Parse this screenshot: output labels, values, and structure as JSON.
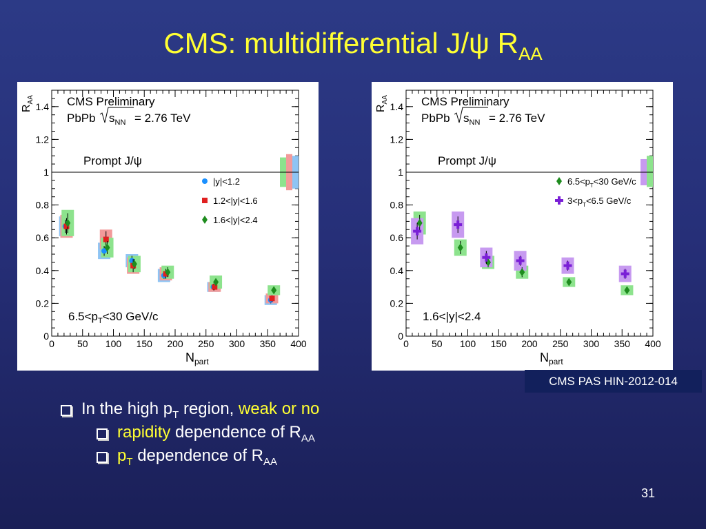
{
  "slide": {
    "title_main": "CMS: multidifferential J/ψ R",
    "title_sub": "AA",
    "reference": "CMS PAS HIN-2012-014",
    "page_number": "31"
  },
  "bullets": {
    "b1_a": "In the high p",
    "b1_sub": "T",
    "b1_b": " region, ",
    "b1_c": "weak or no",
    "b2_a": "rapidity",
    "b2_b": " dependence of R",
    "b2_sub": "AA",
    "b3_a": "p",
    "b3_asub": "T",
    "b3_b": " dependence of R",
    "b3_sub": "AA"
  },
  "colors": {
    "title": "#ffff33",
    "highlight": "#ffff33",
    "text": "#ffffff",
    "background": "#262f78",
    "ref_box": "#12205c"
  },
  "chart_data": [
    {
      "type": "scatter",
      "header": "CMS Preliminary",
      "energy_prefix": "PbPb",
      "energy_sub": "NN",
      "energy_value": "= 2.76 TeV",
      "tag": "Prompt J/ψ",
      "cut_a": "6.5<p",
      "cut_sub": "T",
      "cut_b": "<30 GeV/c",
      "xlabel": "N",
      "xlabel_sub": "part",
      "ylabel": "R",
      "ylabel_sub": "AA",
      "xlim": [
        0,
        400
      ],
      "ylim": [
        0,
        1.5
      ],
      "xticks": [
        "0",
        "50",
        "100",
        "150",
        "200",
        "250",
        "300",
        "350",
        "400"
      ],
      "yticks": [
        "0",
        "0.2",
        "0.4",
        "0.6",
        "0.8",
        "1",
        "1.2",
        "1.4"
      ],
      "reference_line": 1,
      "legend_position": "right",
      "series": [
        {
          "name": "|y|<1.2",
          "marker": "circle",
          "color": "#1a90ff",
          "box_color": "#8ec4f4",
          "x": [
            22,
            85,
            130,
            182,
            262,
            355
          ],
          "y": [
            0.67,
            0.52,
            0.46,
            0.37,
            0.3,
            0.22
          ],
          "stat": [
            0.04,
            0.03,
            0.03,
            0.02,
            0.02,
            0.02
          ],
          "syst": [
            0.06,
            0.05,
            0.04,
            0.04,
            0.03,
            0.03
          ]
        },
        {
          "name": "1.2<|y|<1.6",
          "marker": "square",
          "color": "#e02020",
          "box_color": "#f29a9a",
          "x": [
            24,
            88,
            132,
            185,
            264,
            357
          ],
          "y": [
            0.67,
            0.59,
            0.43,
            0.38,
            0.3,
            0.23
          ],
          "stat": [
            0.05,
            0.05,
            0.04,
            0.03,
            0.02,
            0.02
          ],
          "syst": [
            0.07,
            0.06,
            0.05,
            0.04,
            0.03,
            0.03
          ]
        },
        {
          "name": "1.6<|y|<2.4",
          "marker": "diamond",
          "color": "#1e8c1e",
          "box_color": "#8de38d",
          "x": [
            26,
            90,
            134,
            188,
            266,
            360
          ],
          "y": [
            0.69,
            0.54,
            0.44,
            0.39,
            0.33,
            0.28
          ],
          "stat": [
            0.06,
            0.04,
            0.03,
            0.03,
            0.02,
            0.02
          ],
          "syst": [
            0.08,
            0.06,
            0.05,
            0.04,
            0.04,
            0.03
          ]
        }
      ],
      "global_uncertainty_bands": [
        {
          "color": "#8de38d",
          "low": 0.91,
          "high": 1.09
        },
        {
          "color": "#f29a9a",
          "low": 0.89,
          "high": 1.11
        },
        {
          "color": "#8ec4f4",
          "low": 0.9,
          "high": 1.1
        }
      ]
    },
    {
      "type": "scatter",
      "header": "CMS Preliminary",
      "energy_prefix": "PbPb",
      "energy_sub": "NN",
      "energy_value": "= 2.76 TeV",
      "tag": "Prompt J/ψ",
      "cut_a": "1.6<|y|<2.4",
      "cut_sub": "",
      "cut_b": "",
      "xlabel": "N",
      "xlabel_sub": "part",
      "ylabel": "R",
      "ylabel_sub": "AA",
      "xlim": [
        0,
        400
      ],
      "ylim": [
        0,
        1.5
      ],
      "xticks": [
        "0",
        "50",
        "100",
        "150",
        "200",
        "250",
        "300",
        "350",
        "400"
      ],
      "yticks": [
        "0",
        "0.2",
        "0.4",
        "0.6",
        "0.8",
        "1",
        "1.2",
        "1.4"
      ],
      "reference_line": 1,
      "legend_position": "right",
      "series": [
        {
          "name": "6.5<pT<30 GeV/c",
          "legend_a": "6.5<p",
          "legend_sub": "T",
          "legend_b": "<30 GeV/c",
          "marker": "diamond",
          "color": "#1e8c1e",
          "box_color": "#8de38d",
          "x": [
            22,
            88,
            133,
            188,
            264,
            358
          ],
          "y": [
            0.69,
            0.54,
            0.45,
            0.39,
            0.33,
            0.28
          ],
          "stat": [
            0.05,
            0.04,
            0.03,
            0.03,
            0.02,
            0.02
          ],
          "syst": [
            0.07,
            0.05,
            0.04,
            0.04,
            0.03,
            0.03
          ]
        },
        {
          "name": "3<pT<6.5 GeV/c",
          "legend_a": "3<p",
          "legend_sub": "T",
          "legend_b": "<6.5 GeV/c",
          "marker": "cross",
          "color": "#7a1fd6",
          "box_color": "#c79af0",
          "x": [
            18,
            84,
            130,
            185,
            262,
            355
          ],
          "y": [
            0.64,
            0.68,
            0.48,
            0.46,
            0.43,
            0.38
          ],
          "stat": [
            0.05,
            0.05,
            0.04,
            0.03,
            0.03,
            0.03
          ],
          "syst": [
            0.08,
            0.08,
            0.06,
            0.06,
            0.05,
            0.05
          ]
        }
      ],
      "global_uncertainty_bands": [
        {
          "color": "#c79af0",
          "low": 0.92,
          "high": 1.08
        },
        {
          "color": "#8de38d",
          "low": 0.91,
          "high": 1.1
        }
      ]
    }
  ]
}
